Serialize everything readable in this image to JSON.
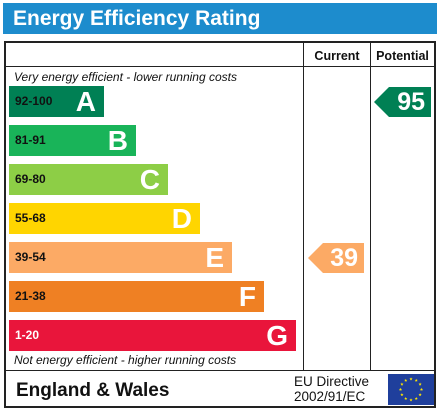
{
  "header": {
    "title": "Energy Efficiency Rating"
  },
  "columns": {
    "current": "Current",
    "potential": "Potential"
  },
  "notes": {
    "top": "Very energy efficient - lower running costs",
    "bottom": "Not energy efficient - higher running costs"
  },
  "chart_data": {
    "type": "bar",
    "bands": [
      {
        "letter": "A",
        "range": "92-100",
        "color": "#008054",
        "range_color": "#111111"
      },
      {
        "letter": "B",
        "range": "81-91",
        "color": "#19b459",
        "range_color": "#111111"
      },
      {
        "letter": "C",
        "range": "69-80",
        "color": "#8dce46",
        "range_color": "#111111"
      },
      {
        "letter": "D",
        "range": "55-68",
        "color": "#ffd500",
        "range_color": "#111111"
      },
      {
        "letter": "E",
        "range": "39-54",
        "color": "#fcaa65",
        "range_color": "#111111"
      },
      {
        "letter": "F",
        "range": "21-38",
        "color": "#ef8023",
        "range_color": "#111111"
      },
      {
        "letter": "G",
        "range": "1-20",
        "color": "#e9153b",
        "range_color": "#ffffff"
      }
    ],
    "current": {
      "value": 39,
      "band": "E",
      "color": "#fcaa65"
    },
    "potential": {
      "value": 95,
      "band": "A",
      "color": "#008054"
    }
  },
  "footer": {
    "country": "England & Wales",
    "directive_line1": "EU Directive",
    "directive_line2": "2002/91/EC"
  }
}
